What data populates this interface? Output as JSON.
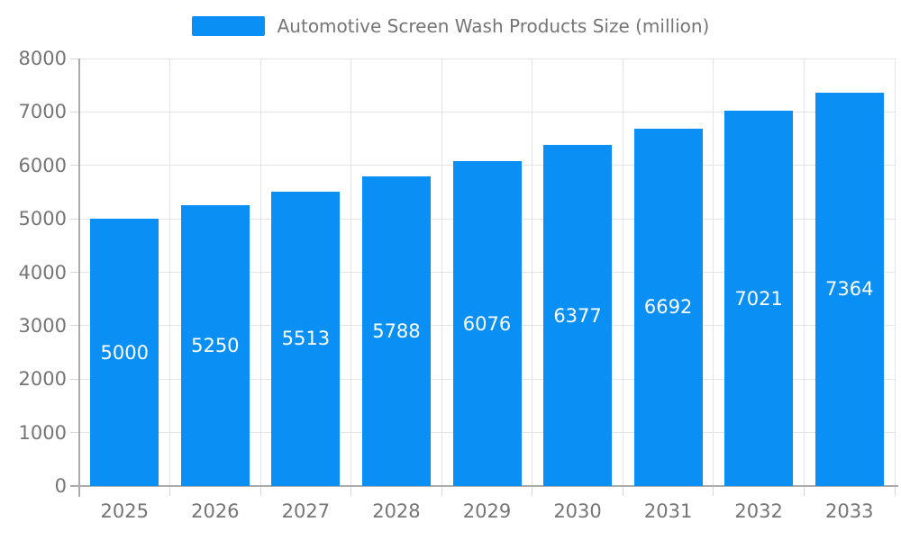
{
  "chart_data": {
    "type": "bar",
    "title": "Automotive Screen Wash Products Size (million)",
    "legend_entries": [
      "Automotive Screen Wash Products Size (million)"
    ],
    "legend_position": "top-center",
    "categories": [
      "2025",
      "2026",
      "2027",
      "2028",
      "2029",
      "2030",
      "2031",
      "2032",
      "2033"
    ],
    "values": [
      5000,
      5250,
      5513,
      5788,
      6076,
      6377,
      6692,
      7021,
      7364
    ],
    "xlabel": "",
    "ylabel": "",
    "ylim": [
      0,
      8000
    ],
    "ytick_step": 1000,
    "ytick_labels": [
      "0",
      "1000",
      "2000",
      "3000",
      "4000",
      "5000",
      "6000",
      "7000",
      "8000"
    ],
    "grid": true,
    "value_label_position": "inside-center",
    "colors": {
      "bar": "#0A90F5",
      "value_label": "#FFFFFF",
      "axis_text": "#757575",
      "gridline": "#E4E4E4",
      "axis_line": "#ABABAB",
      "tick": "#D6D6D6",
      "background": "#FFFFFF"
    }
  }
}
